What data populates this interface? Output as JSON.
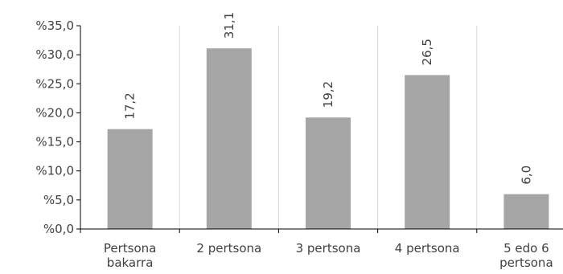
{
  "chart_data": {
    "type": "bar",
    "categories": [
      [
        "Pertsona",
        "bakarra"
      ],
      [
        "2 pertsona"
      ],
      [
        "3 pertsona"
      ],
      [
        "4 pertsona"
      ],
      [
        "5 edo 6",
        "pertsona"
      ]
    ],
    "values": [
      17.2,
      31.1,
      19.2,
      26.5,
      6.0
    ],
    "data_labels": [
      "17,2",
      "31,1",
      "19,2",
      "26,5",
      "6,0"
    ],
    "ylim": [
      0,
      35
    ],
    "yticks": [
      0,
      5,
      10,
      15,
      20,
      25,
      30,
      35
    ],
    "ytick_labels": [
      "%0,0",
      "%5,0",
      "%10,0",
      "%15,0",
      "%20,0",
      "%25,0",
      "%30,0",
      "%35,0"
    ],
    "grid": "vertical",
    "legend": "none",
    "title": "",
    "xlabel": "",
    "ylabel": "",
    "bar_color": "#a5a5a5",
    "grid_color": "#d9d9d9",
    "axis_color": "#000000"
  }
}
